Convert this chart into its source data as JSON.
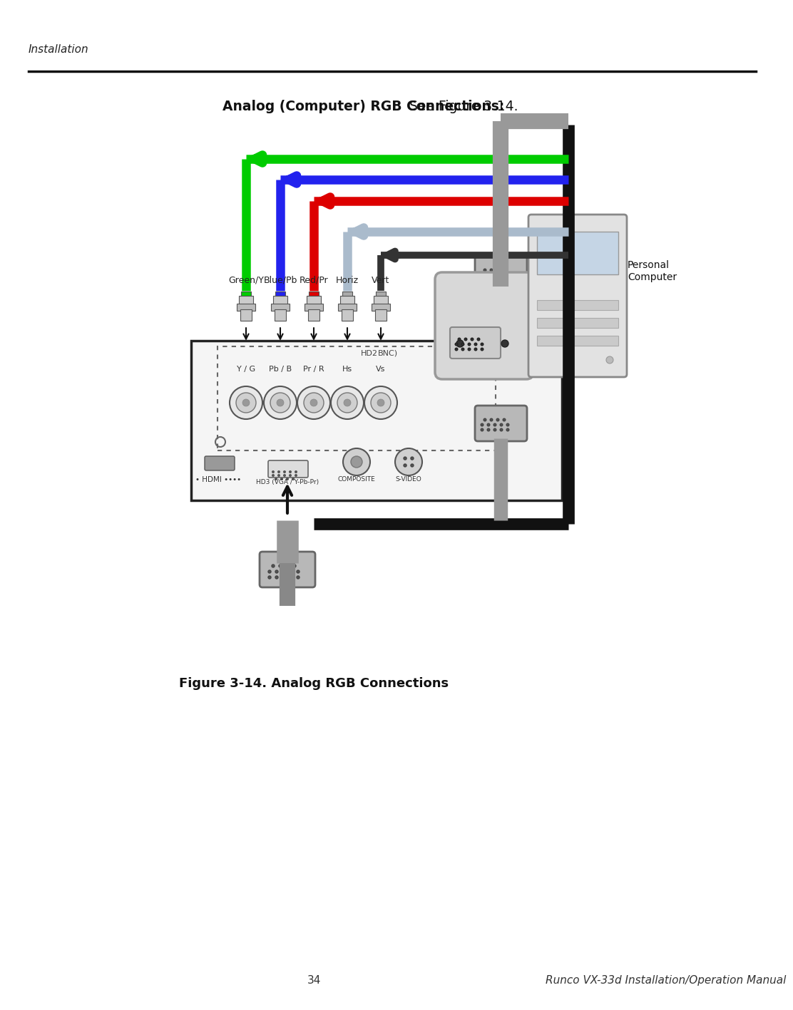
{
  "page_title_italic": "Installation",
  "main_title_bold": "Analog (Computer) RGB Connections:",
  "main_title_normal": " See Figure 3-14.",
  "figure_caption": "Figure 3-14. Analog RGB Connections",
  "page_number": "34",
  "manual_title": "Runco VX-33d Installation/Operation Manual",
  "bg_color": "#ffffff",
  "connector_labels": [
    "Green/Y",
    "Blue/Pb",
    "Red/Pr",
    "Horiz",
    "Vert"
  ],
  "bnc_labels": [
    "Y / G",
    "Pb / B",
    "Pr / R",
    "Hs",
    "Vs"
  ],
  "wire_colors": [
    "#00cc00",
    "#2222ee",
    "#dd0000",
    "#aabbcc",
    "#333333"
  ],
  "pc_label_line1": "Personal",
  "pc_label_line2": "Computer"
}
